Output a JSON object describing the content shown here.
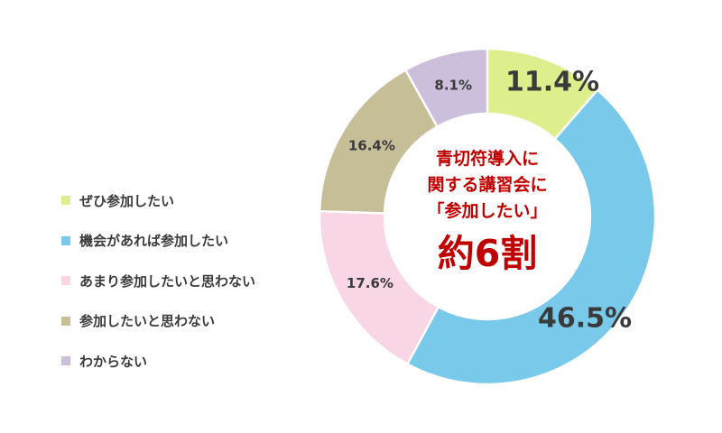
{
  "chart_data": {
    "type": "pie",
    "style": "donut",
    "categories": [
      "ぜひ参加したい",
      "機会があれば参加したい",
      "あまり参加したいと思わない",
      "参加したいと思わない",
      "わからない"
    ],
    "values": [
      11.4,
      46.5,
      17.6,
      16.4,
      8.1
    ],
    "value_labels": [
      "11.4%",
      "46.5%",
      "17.6%",
      "16.4%",
      "8.1%"
    ],
    "colors": [
      "#dcef8c",
      "#79c9ea",
      "#f8d6e6",
      "#c6be97",
      "#cbbfdc"
    ],
    "legend_position": "left",
    "title": ""
  },
  "center": {
    "line1": "青切符導入に",
    "line2": "関する講習会に",
    "line3": "「参加したい」",
    "highlight": "約6割",
    "color": "#c00000"
  }
}
